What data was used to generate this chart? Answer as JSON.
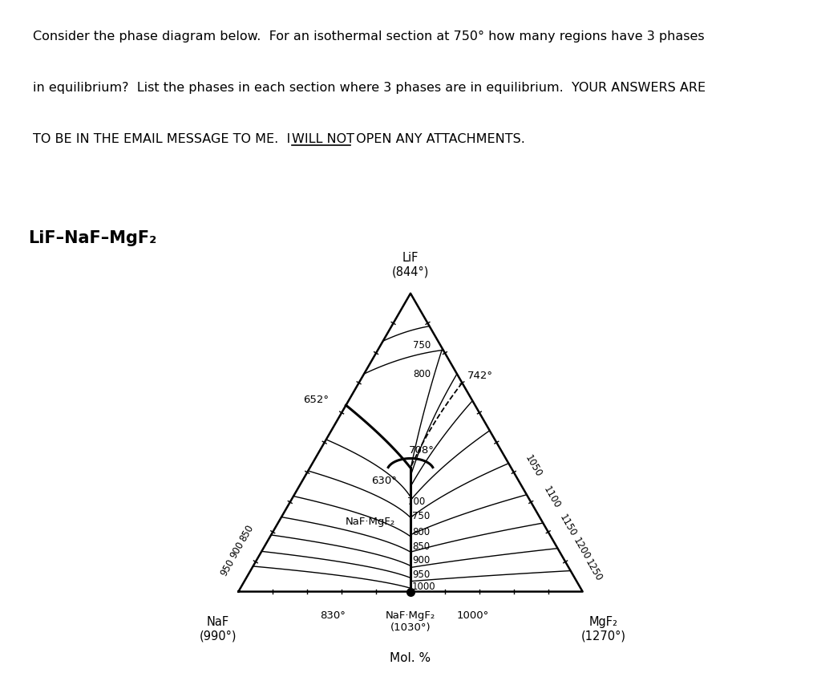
{
  "system_title": "LiF–NaF–MgF₂",
  "vertex_top_label": "LiF\n(844°)",
  "vertex_bl_label": "NaF\n(990°)",
  "vertex_br_label": "MgF₂\n(1270°)",
  "bottom_left_temp": "830°",
  "bottom_mid_label": "NaF·MgF₂\n(1030°)",
  "bottom_mid_temp": "1000°",
  "xlabel": "Mol. %",
  "compound_label": "NaF·MgF₂",
  "eutectic_652": "652°",
  "eutectic_708": "708°",
  "eutectic_742": "742°",
  "eutectic_630": "630°",
  "bg_color": "#ffffff",
  "line_color": "#000000",
  "triangle_lw": 1.8,
  "contour_lw": 1.0,
  "bold_boundary_lw": 2.2,
  "para_line1": "Consider the phase diagram below.  For an isothermal section at 750° how many regions have 3 phases",
  "para_line2": "in equilibrium?  List the phases in each section where 3 phases are in equilibrium.  YOUR ANSWERS ARE",
  "para_line3_pre": "TO BE IN THE EMAIL MESSAGE TO ME.  I ",
  "para_line3_underline": "WILL NOT",
  "para_line3_post": " OPEN ANY ATTACHMENTS."
}
